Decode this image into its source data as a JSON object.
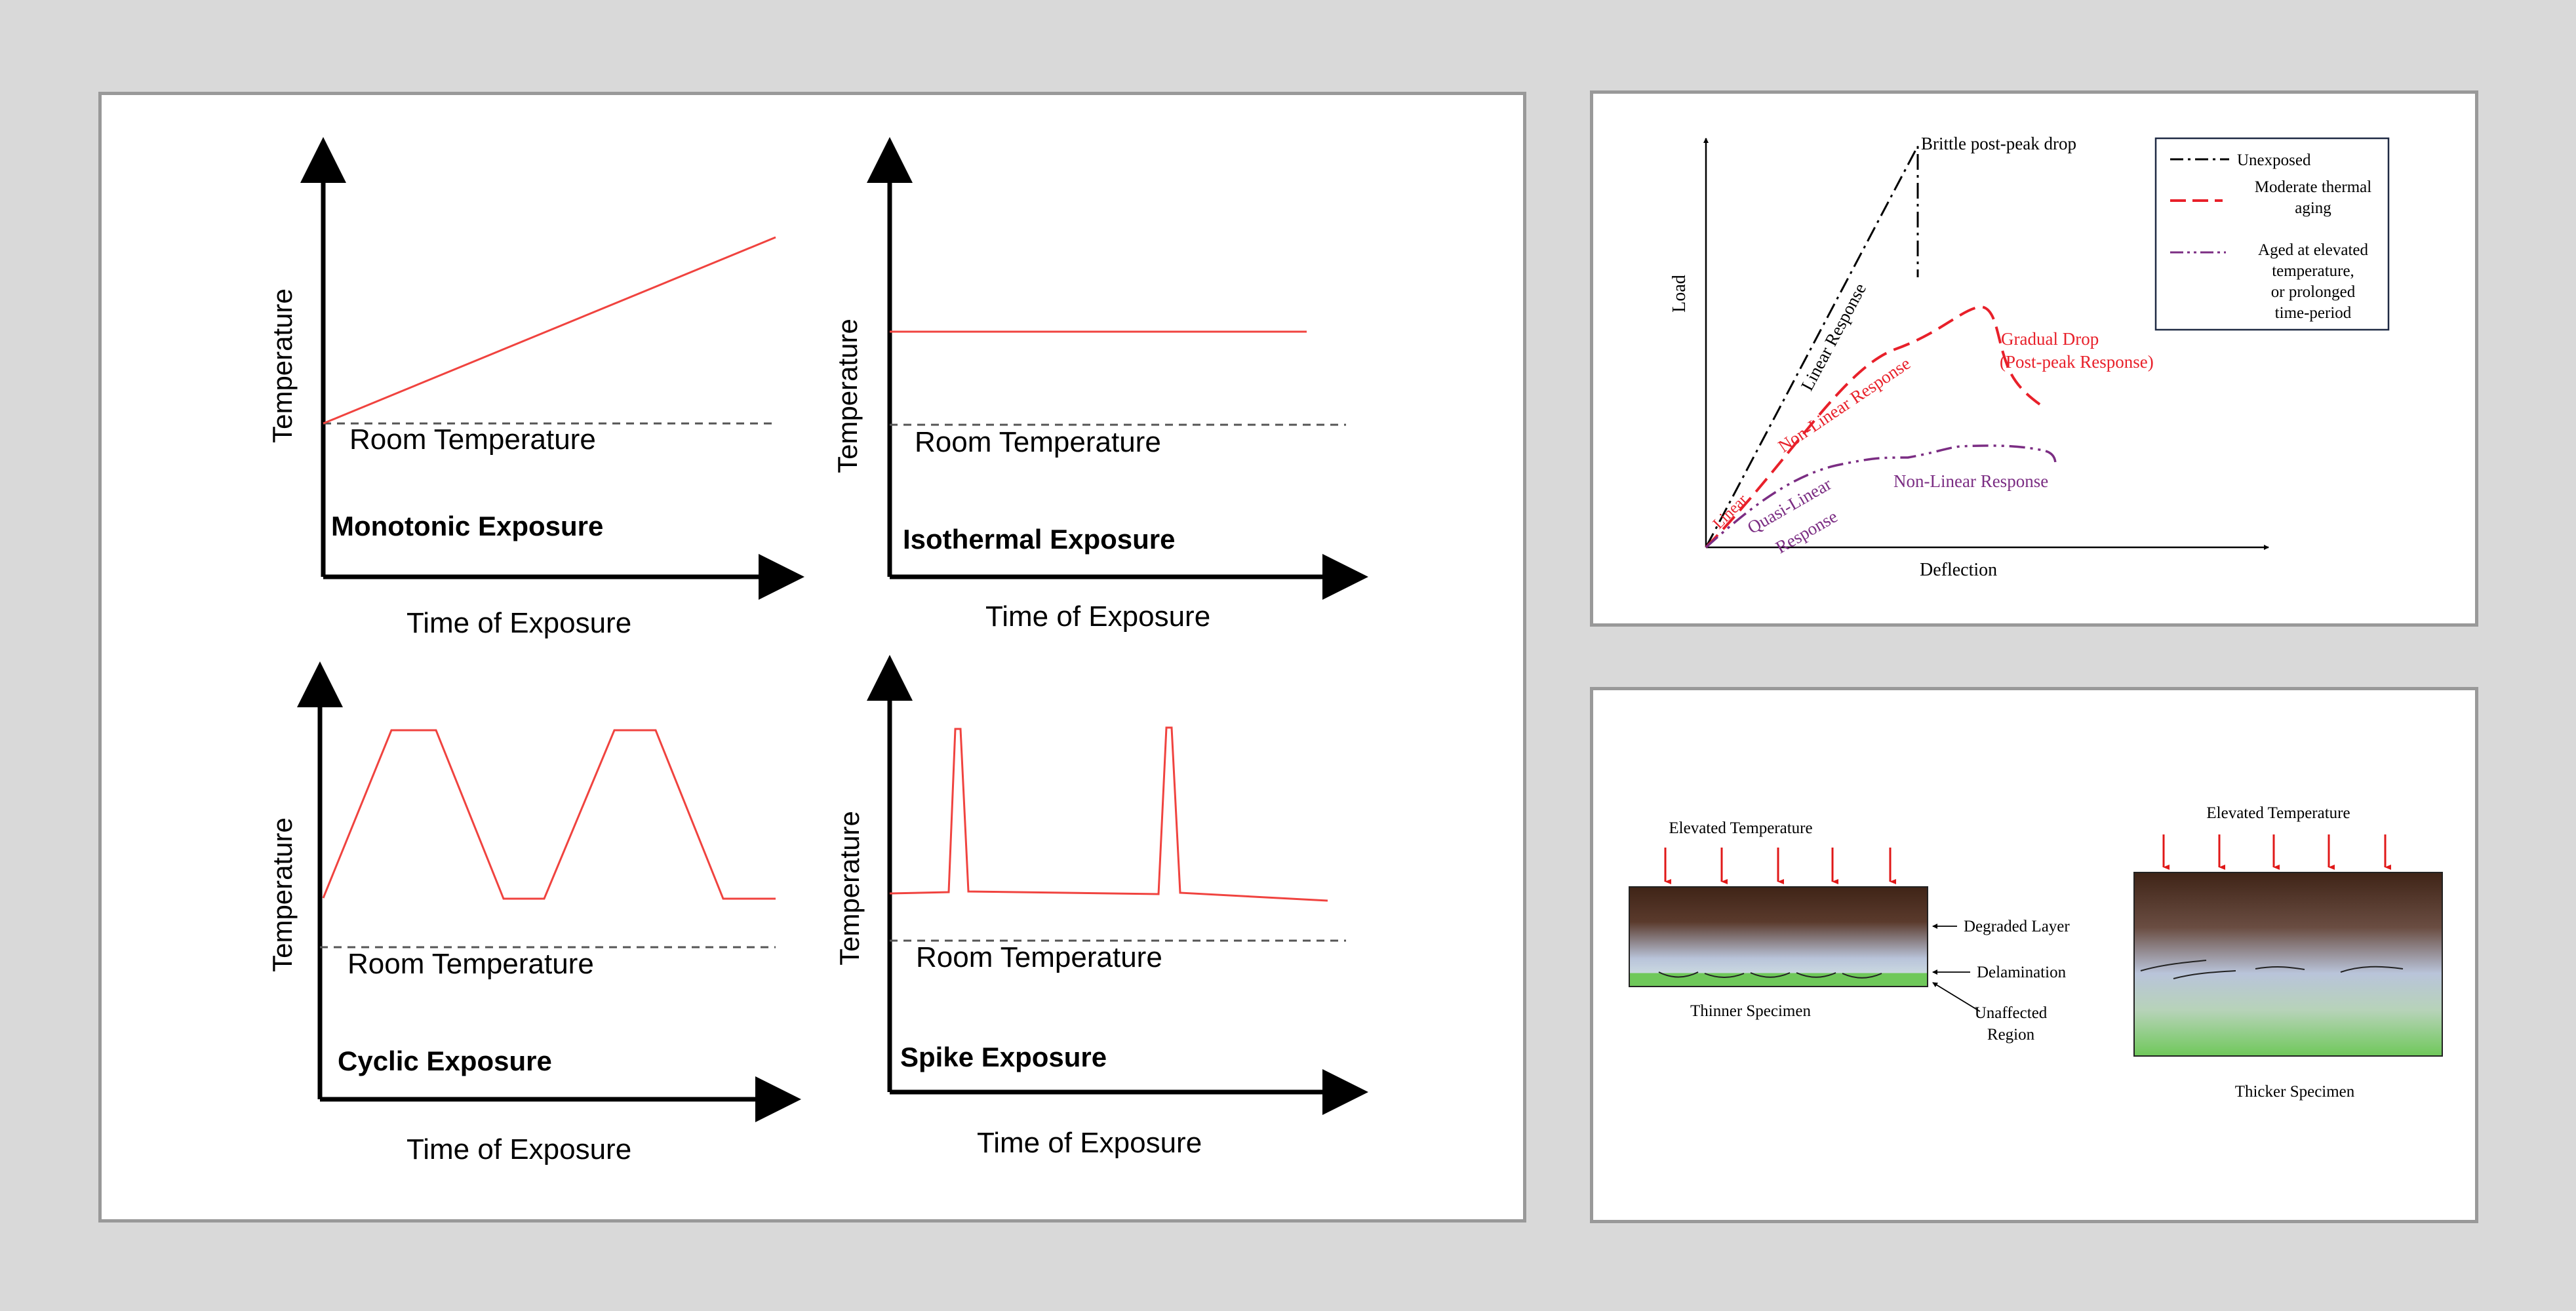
{
  "exposure_panel": {
    "charts": [
      {
        "title": "Monotonic Exposure",
        "ylabel": "Temperature",
        "xlabel": "Time of Exposure",
        "baseline_label": "Room Temperature"
      },
      {
        "title": "Isothermal Exposure",
        "ylabel": "Temperature",
        "xlabel": "Time of Exposure",
        "baseline_label": "Room Temperature"
      },
      {
        "title": "Cyclic Exposure",
        "ylabel": "Temperature",
        "xlabel": "Time of Exposure",
        "baseline_label": "Room Temperature"
      },
      {
        "title": "Spike Exposure",
        "ylabel": "Temperature",
        "xlabel": "Time of Exposure",
        "baseline_label": "Room Temperature"
      }
    ]
  },
  "load_panel": {
    "ylabel": "Load",
    "xlabel": "Deflection",
    "legend": {
      "unexposed": "Unexposed",
      "moderate": [
        "Moderate thermal",
        "aging"
      ],
      "elevated": [
        "Aged at elevated",
        "temperature,",
        "or prolonged",
        "time-period"
      ]
    },
    "annotations": {
      "brittle": "Brittle post-peak drop",
      "linear_response": "Linear Response",
      "non_linear_red": "Non-Linear Response",
      "gradual_drop": [
        "Gradual Drop",
        "(Post-peak Response)"
      ],
      "linear_small": "Linear",
      "quasi_linear": [
        "Quasi-Linear",
        "Response"
      ],
      "non_linear_purple": "Non-Linear Response"
    },
    "colors": {
      "unexposed": "#000000",
      "moderate": "#e8202a",
      "elevated": "#7b2d83"
    }
  },
  "specimen_panel": {
    "left_heat_label": "Elevated Temperature",
    "right_heat_label": "Elevated Temperature",
    "thin_label": "Thinner Specimen",
    "thick_label": "Thicker Specimen",
    "callouts": {
      "degraded": "Degraded Layer",
      "delamination": "Delamination",
      "unaffected": [
        "Unaffected",
        "Region"
      ]
    },
    "colors": {
      "degraded": "#3f2417",
      "unaffected": "#6fc85a",
      "arrow": "#e01818"
    }
  }
}
